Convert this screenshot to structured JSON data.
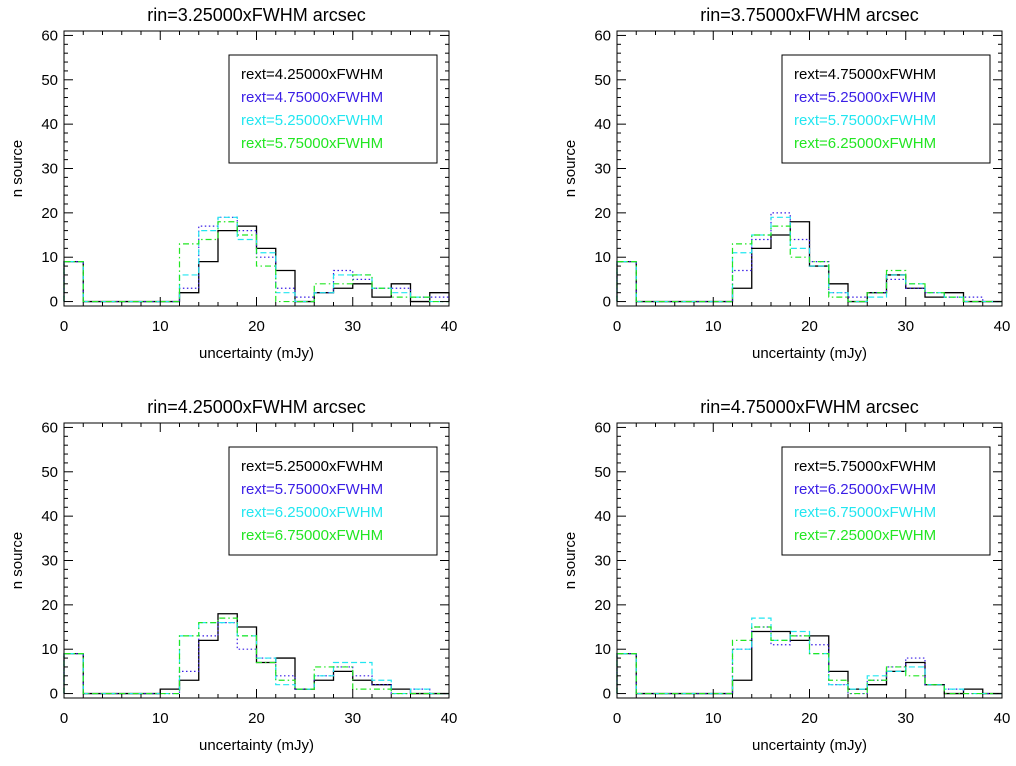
{
  "figure": {
    "colors": {
      "axes": "#000000",
      "series": [
        "#000000",
        "#3a1ee6",
        "#22e6f0",
        "#22e622"
      ]
    }
  },
  "chart_data": [
    {
      "type": "step",
      "title": "rin=3.25000xFWHM arcsec",
      "xlabel": "uncertainty (mJy)",
      "ylabel": "n source",
      "xlim": [
        0,
        40
      ],
      "ylim": [
        -1,
        61
      ],
      "xticks": [
        "0",
        "10",
        "20",
        "30",
        "40"
      ],
      "yticks": [
        "0",
        "10",
        "20",
        "30",
        "40",
        "50",
        "60"
      ],
      "legend_position": "top-right",
      "bin_edges": [
        0,
        2,
        4,
        6,
        8,
        10,
        12,
        14,
        16,
        18,
        20,
        22,
        24,
        26,
        28,
        30,
        32,
        34,
        36,
        38,
        40
      ],
      "series": [
        {
          "name": "rext=4.25000xFWHM",
          "line_style": "solid",
          "color": "#000000",
          "values": [
            9,
            0,
            0,
            0,
            0,
            0,
            2,
            9,
            16,
            17,
            12,
            7,
            0,
            2,
            3,
            4,
            1,
            4,
            0,
            2
          ]
        },
        {
          "name": "rext=4.75000xFWHM",
          "line_style": "dotted",
          "color": "#3a1ee6",
          "values": [
            9,
            0,
            0,
            0,
            0,
            0,
            3,
            17,
            19,
            16,
            10,
            3,
            1,
            2,
            7,
            5,
            3,
            3,
            1,
            1
          ]
        },
        {
          "name": "rext=5.25000xFWHM",
          "line_style": "dashed",
          "color": "#22e6f0",
          "values": [
            9,
            0,
            0,
            0,
            0,
            0,
            6,
            16,
            19,
            14,
            11,
            2,
            0,
            2,
            6,
            6,
            3,
            2,
            1,
            0
          ]
        },
        {
          "name": "rext=5.75000xFWHM",
          "line_style": "dash-dot",
          "color": "#22e622",
          "values": [
            9,
            0,
            0,
            0,
            0,
            0,
            13,
            14,
            18,
            15,
            8,
            0,
            0,
            4,
            4,
            6,
            3,
            1,
            1,
            0
          ]
        }
      ]
    },
    {
      "type": "step",
      "title": "rin=3.75000xFWHM arcsec",
      "xlabel": "uncertainty (mJy)",
      "ylabel": "n source",
      "xlim": [
        0,
        40
      ],
      "ylim": [
        -1,
        61
      ],
      "xticks": [
        "0",
        "10",
        "20",
        "30",
        "40"
      ],
      "yticks": [
        "0",
        "10",
        "20",
        "30",
        "40",
        "50",
        "60"
      ],
      "legend_position": "top-right",
      "bin_edges": [
        0,
        2,
        4,
        6,
        8,
        10,
        12,
        14,
        16,
        18,
        20,
        22,
        24,
        26,
        28,
        30,
        32,
        34,
        36,
        38,
        40
      ],
      "series": [
        {
          "name": "rext=4.75000xFWHM",
          "line_style": "solid",
          "color": "#000000",
          "values": [
            9,
            0,
            0,
            0,
            0,
            0,
            3,
            12,
            15,
            18,
            8,
            4,
            0,
            2,
            6,
            3,
            1,
            2,
            0,
            0
          ]
        },
        {
          "name": "rext=5.25000xFWHM",
          "line_style": "dotted",
          "color": "#3a1ee6",
          "values": [
            9,
            0,
            0,
            0,
            0,
            0,
            7,
            14,
            20,
            14,
            9,
            2,
            1,
            2,
            5,
            3,
            2,
            1,
            1,
            0
          ]
        },
        {
          "name": "rext=5.75000xFWHM",
          "line_style": "dashed",
          "color": "#22e6f0",
          "values": [
            9,
            0,
            0,
            0,
            0,
            0,
            11,
            15,
            19,
            12,
            8,
            2,
            0,
            1,
            6,
            4,
            2,
            1,
            0,
            0
          ]
        },
        {
          "name": "rext=6.25000xFWHM",
          "line_style": "dash-dot",
          "color": "#22e622",
          "values": [
            9,
            0,
            0,
            0,
            0,
            0,
            13,
            15,
            17,
            10,
            9,
            1,
            0,
            2,
            7,
            4,
            2,
            1,
            0,
            0
          ]
        }
      ]
    },
    {
      "type": "step",
      "title": "rin=4.25000xFWHM arcsec",
      "xlabel": "uncertainty (mJy)",
      "ylabel": "n source",
      "xlim": [
        0,
        40
      ],
      "ylim": [
        -1,
        61
      ],
      "xticks": [
        "0",
        "10",
        "20",
        "30",
        "40"
      ],
      "yticks": [
        "0",
        "10",
        "20",
        "30",
        "40",
        "50",
        "60"
      ],
      "legend_position": "top-right",
      "bin_edges": [
        0,
        2,
        4,
        6,
        8,
        10,
        12,
        14,
        16,
        18,
        20,
        22,
        24,
        26,
        28,
        30,
        32,
        34,
        36,
        38,
        40
      ],
      "series": [
        {
          "name": "rext=5.25000xFWHM",
          "line_style": "solid",
          "color": "#000000",
          "values": [
            9,
            0,
            0,
            0,
            0,
            1,
            3,
            12,
            18,
            15,
            7,
            8,
            1,
            3,
            5,
            3,
            2,
            1,
            0,
            0
          ]
        },
        {
          "name": "rext=5.75000xFWHM",
          "line_style": "dotted",
          "color": "#3a1ee6",
          "values": [
            9,
            0,
            0,
            0,
            0,
            0,
            5,
            13,
            16,
            10,
            8,
            4,
            1,
            4,
            6,
            4,
            2,
            0,
            1,
            0
          ]
        },
        {
          "name": "rext=6.25000xFWHM",
          "line_style": "dashed",
          "color": "#22e6f0",
          "values": [
            9,
            0,
            0,
            0,
            0,
            0,
            13,
            16,
            16,
            13,
            8,
            2,
            1,
            4,
            7,
            7,
            3,
            0,
            1,
            0
          ]
        },
        {
          "name": "rext=6.75000xFWHM",
          "line_style": "dash-dot",
          "color": "#22e622",
          "values": [
            9,
            0,
            0,
            0,
            0,
            0,
            13,
            16,
            17,
            13,
            7,
            3,
            1,
            6,
            6,
            1,
            1,
            0,
            0,
            0
          ]
        }
      ]
    },
    {
      "type": "step",
      "title": "rin=4.75000xFWHM arcsec",
      "xlabel": "uncertainty (mJy)",
      "ylabel": "n source",
      "xlim": [
        0,
        40
      ],
      "ylim": [
        -1,
        61
      ],
      "xticks": [
        "0",
        "10",
        "20",
        "30",
        "40"
      ],
      "yticks": [
        "0",
        "10",
        "20",
        "30",
        "40",
        "50",
        "60"
      ],
      "legend_position": "top-right",
      "bin_edges": [
        0,
        2,
        4,
        6,
        8,
        10,
        12,
        14,
        16,
        18,
        20,
        22,
        24,
        26,
        28,
        30,
        32,
        34,
        36,
        38,
        40
      ],
      "series": [
        {
          "name": "rext=5.75000xFWHM",
          "line_style": "solid",
          "color": "#000000",
          "values": [
            9,
            0,
            0,
            0,
            0,
            0,
            3,
            14,
            14,
            12,
            13,
            5,
            1,
            2,
            5,
            7,
            2,
            0,
            1,
            0
          ]
        },
        {
          "name": "rext=6.25000xFWHM",
          "line_style": "dotted",
          "color": "#3a1ee6",
          "values": [
            9,
            0,
            0,
            0,
            0,
            0,
            10,
            15,
            11,
            13,
            11,
            2,
            0,
            3,
            6,
            8,
            2,
            1,
            0,
            0
          ]
        },
        {
          "name": "rext=6.75000xFWHM",
          "line_style": "dashed",
          "color": "#22e6f0",
          "values": [
            9,
            0,
            0,
            0,
            0,
            0,
            10,
            17,
            12,
            14,
            9,
            2,
            1,
            4,
            5,
            6,
            2,
            1,
            0,
            0
          ]
        },
        {
          "name": "rext=7.25000xFWHM",
          "line_style": "dash-dot",
          "color": "#22e622",
          "values": [
            9,
            0,
            0,
            0,
            0,
            0,
            12,
            15,
            12,
            13,
            9,
            3,
            0,
            3,
            6,
            4,
            2,
            0,
            0,
            0
          ]
        }
      ]
    }
  ]
}
